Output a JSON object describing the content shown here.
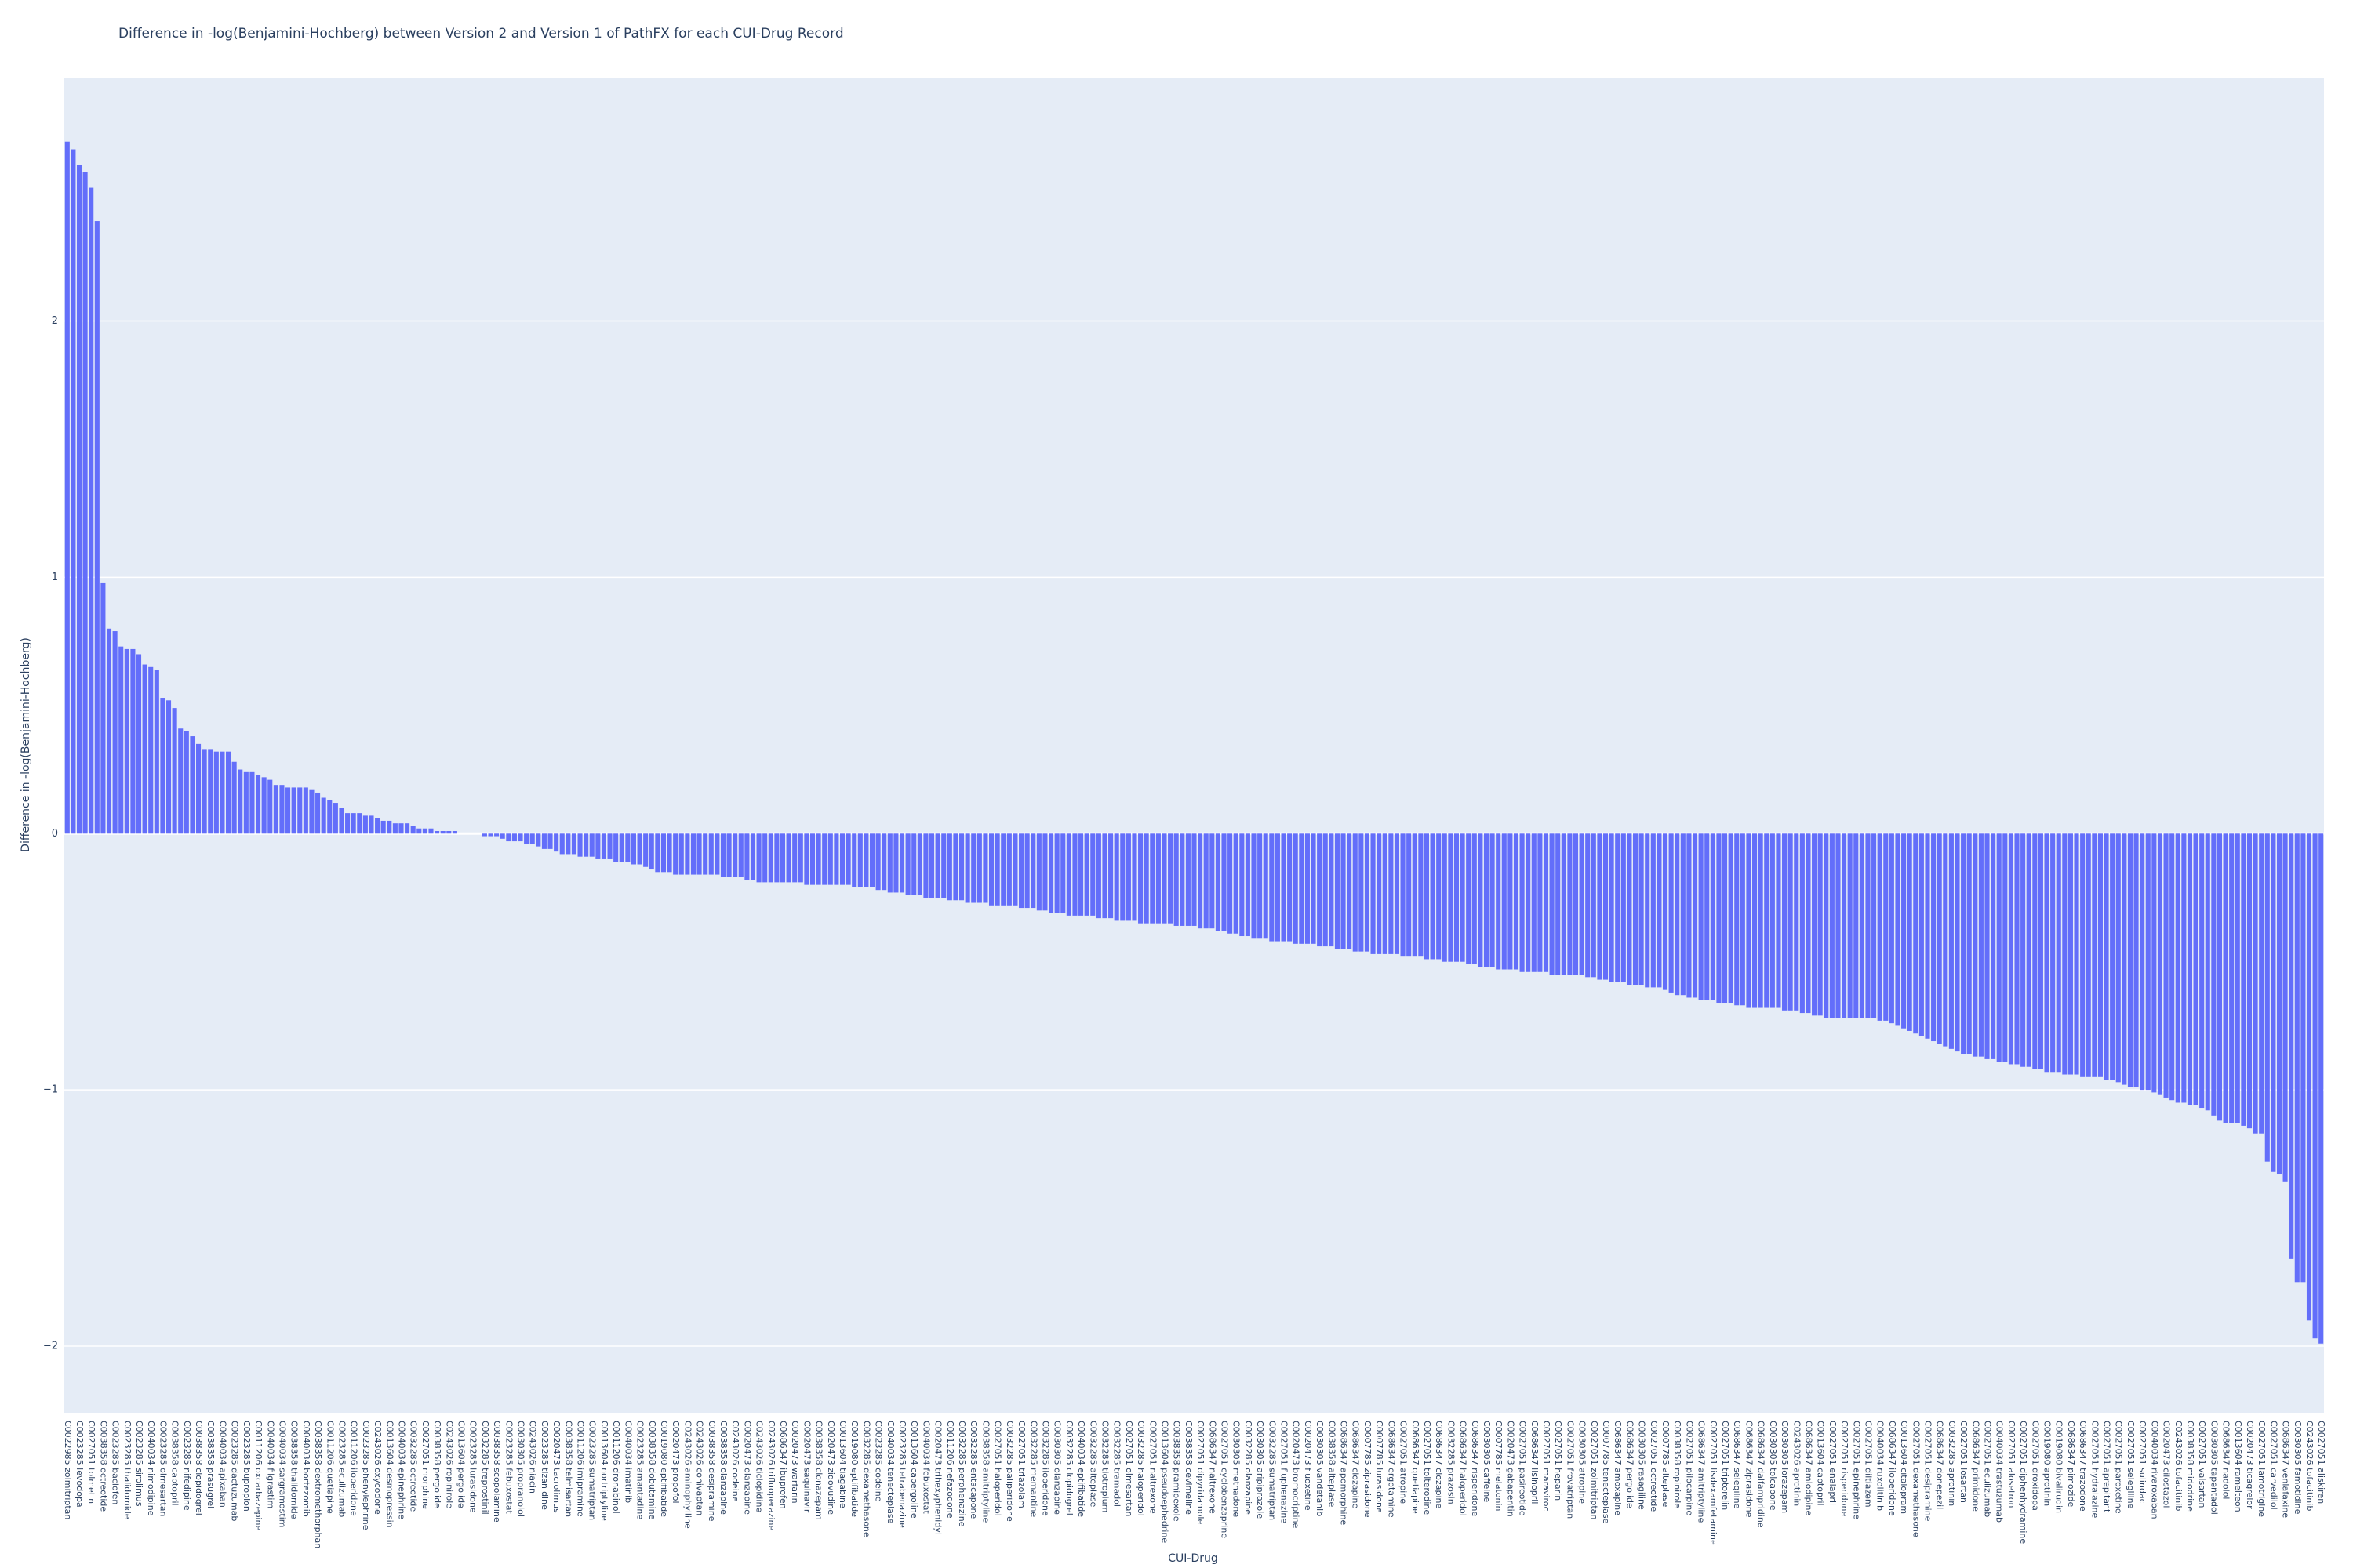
{
  "chart_data": {
    "type": "bar",
    "title": "Difference in -log(Benjamini-Hochberg) between Version 2 and Version 1 of PathFX for each CUI-Drug Record",
    "x_label": "CUI-Drug",
    "y_label": "Difference in -log(Benjamini-Hochberg)",
    "color": "#636efa",
    "grid": true,
    "ylim": [
      -2.26,
      2.95
    ],
    "yticks": [
      {
        "value": -2,
        "label": "−2"
      },
      {
        "value": -1,
        "label": "−1"
      },
      0,
      1,
      2
    ],
    "categories": [
      "C0022985 zolmitriptan",
      null,
      "C0023285 levodopa",
      null,
      "C0027051 tolmetin",
      null,
      "C0038358 octreotide",
      null,
      "C0023285 baclofen",
      null,
      "C0023285 thalidomide",
      null,
      "C0023285 sirolimus",
      null,
      "C0040034 nimodipine",
      null,
      "C0023285 olmesartan",
      null,
      "C0038358 captopril",
      null,
      "C0023285 nifedipine",
      null,
      "C0038358 clopidogrel",
      null,
      "C0038358 prasugrel",
      null,
      "C0040034 apixaban",
      null,
      "C0023285 dactuzumab",
      null,
      "C0023285 bupropion",
      null,
      "C0011206 oxcarbazepine",
      null,
      "C0040034 filgrastim",
      null,
      "C0040034 sargramostim",
      null,
      "C0038358 thalidomide",
      null,
      "C0040034 bortezomib",
      null,
      "C0038358 dextromethorphan",
      null,
      "C0011206 quetiapine",
      null,
      "C0023285 eculizumab",
      null,
      "C0011206 iloperidone",
      null,
      "C0023285 phenylephrine",
      null,
      "C0243026 oxycodone",
      null,
      "C0013604 desmopressin",
      null,
      "C0040034 epinephrine",
      null,
      "C0032285 octreotide",
      null,
      "C0027051 morphine",
      null,
      "C0038358 pergolide",
      null,
      "C0243026 ropinirole",
      null,
      "C0013604 pergolide",
      null,
      "C0023285 lurasidone",
      null,
      "C0032285 treprostinil",
      null,
      "C0038358 scopolamine",
      null,
      "C0023285 febuxostat",
      null,
      "C0030305 propranolol",
      null,
      "C0243026 niacin",
      null,
      "C0023285 tizanidine",
      null,
      "C0020473 tacrolimus",
      null,
      "C0038358 telmisartan",
      null,
      "C0011206 imipramine",
      null,
      "C0023285 sumatriptan",
      null,
      "C0013604 nortriptyline",
      null,
      "C0011206 dronabinol",
      null,
      "C0040034 imatinib",
      null,
      "C0023285 amantadine",
      null,
      "C0038358 dobutamine",
      null,
      "C0019080 eptifibatide",
      null,
      "C0020473 propofol",
      null,
      "C0243026 aminophylline",
      null,
      "C0243026 conivaptan",
      null,
      "C0038358 desipramine",
      null,
      "C0038358 olanzapine",
      null,
      "C0243026 codeine",
      null,
      "C0020473 olanzapine",
      null,
      "C0243026 ticlopidine",
      null,
      "C0243026 trifluoperazine",
      null,
      "C0686347 ibuprofen",
      null,
      "C0020473 warfarin",
      null,
      "C0020473 saquinavir",
      null,
      "C0038358 clonazepam",
      null,
      "C0020473 zidovudine",
      null,
      "C0013604 tiagabine",
      null,
      "C0019080 eptifibatide",
      null,
      "C0032285 dexamethasone",
      null,
      "C0023285 codeine",
      null,
      "C0040034 tenecteplase",
      null,
      "C0023285 tetrabenazine",
      null,
      "C0013604 cabergoline",
      null,
      "C0040034 febuxostat",
      null,
      "C0020473 trihexyphenidyl",
      null,
      "C0011206 nefazodone",
      null,
      "C0032285 perphenazine",
      null,
      "C0032285 entacapone",
      null,
      "C0038358 amitriptyline",
      null,
      "C0027051 haloperidol",
      null,
      "C0032285 paliperidone",
      null,
      "C0027051 triazolam",
      null,
      "C0032285 memantine",
      null,
      "C0032285 iloperidone",
      null,
      "C0030305 olanzapine",
      null,
      "C0032285 clopidogrel",
      null,
      "C0040034 eptifibatide",
      null,
      "C0032285 alteplase",
      null,
      "C0032285 tiotropium",
      null,
      "C0032285 tramadol",
      null,
      "C0027051 olmesartan",
      null,
      "C0032285 haloperidol",
      null,
      "C0027051 naltrexone",
      null,
      "C0013604 pseudoephedrine",
      null,
      "C0038358 pramipexole",
      null,
      "C0038358 cevimeline",
      null,
      "C0027051 dipyridamole",
      null,
      "C0686347 naltrexone",
      null,
      "C0027051 cyclobenzaprine",
      null,
      "C0030305 methadone",
      null,
      "C0032285 olanzapine",
      null,
      "C0030305 aripiprazole",
      null,
      "C0032285 sumatriptan",
      null,
      "C0027051 fluphenazine",
      null,
      "C0020473 bromocriptine",
      null,
      "C0020473 fluoxetine",
      null,
      "C0030305 vandetanib",
      null,
      "C0038358 alteplase",
      null,
      "C0686347 apomorphine",
      null,
      "C0686347 clozapine",
      null,
      "C0007785 ziprasidone",
      null,
      "C0007785 lurasidone",
      null,
      "C0686347 ergotamine",
      null,
      "C0027051 atropine",
      null,
      "C0686347 quetiapine",
      null,
      "C0027051 tolterodine",
      null,
      "C0686347 clozapine",
      null,
      "C0032285 prazosin",
      null,
      "C0686347 haloperidol",
      null,
      "C0686347 risperidone",
      null,
      "C0030305 caffeine",
      null,
      "C0007785 melatonin",
      null,
      "C0020473 gabapentin",
      null,
      "C0027051 pasireotide",
      null,
      "C0686347 lisinopril",
      null,
      "C0027051 maraviroc",
      null,
      "C0027051 heparin",
      null,
      "C0027051 frovatriptan",
      null,
      "C0030305 atropine",
      null,
      "C0027051 zolmitriptan",
      null,
      "C0007785 tenecteplase",
      null,
      "C0686347 amoxapine",
      null,
      "C0686347 pergolide",
      null,
      "C0030305 rasagiline",
      null,
      "C0027051 octreotide",
      null,
      "C0007785 alteplase",
      null,
      "C0038358 ropinirole",
      null,
      "C0027051 pilocarpine",
      null,
      "C0686347 amitriptyline",
      null,
      "C0027051 lisdexamfetamine",
      null,
      "C0027051 triptorelin",
      null,
      "C0686347 selegiline",
      null,
      "C0686347 ziprasidone",
      null,
      "C0686347 dalfampridine",
      null,
      "C0030305 tolcapone",
      null,
      "C0030305 lorazepam",
      null,
      "C0243026 aprotinin",
      null,
      "C0686347 amlodipine",
      null,
      "C0013604 captopril",
      null,
      "C0027051 enalapril",
      null,
      "C0027051 risperidone",
      null,
      "C0027051 epinephrine",
      null,
      "C0027051 diltiazem",
      null,
      "C0040034 ruxolitinib",
      null,
      "C0686347 iloperidone",
      null,
      "C0013604 citalopram",
      null,
      "C0027051 dexamethasone",
      null,
      "C0027051 desipramine",
      null,
      "C0686347 donepezil",
      null,
      "C0032285 aprotinin",
      null,
      "C0027051 losartan",
      null,
      "C0686347 primidone",
      null,
      "C0027051 eculizumab",
      null,
      "C0040034 trastuzumab",
      null,
      "C0027051 alosetron",
      null,
      "C0027051 diphenhydramine",
      null,
      "C0027051 droxidopa",
      null,
      "C0019080 aprotinin",
      null,
      "C0019080 bivalirudin",
      null,
      "C0686347 pimozide",
      null,
      "C0686347 trazodone",
      null,
      "C0027051 hydralazine",
      null,
      "C0027051 aprepitant",
      null,
      "C0027051 paroxetine",
      null,
      "C0027051 selegiline",
      null,
      "C0027051 sulindac",
      null,
      "C0040034 rivaroxaban",
      null,
      "C0020473 cilostazol",
      null,
      "C0243026 tofacitinib",
      null,
      "C0038358 midodrine",
      null,
      "C0027051 valsartan",
      null,
      "C0030305 tapentadol",
      null,
      "C0686347 nadolol",
      null,
      "C0013604 ramelteon",
      null,
      "C0020473 ticagrelor",
      null,
      "C0027051 lamotrigine",
      null,
      "C0027051 carvedilol",
      null,
      "C0686347 venlafaxine",
      null,
      "C0030305 famotidine",
      null,
      "C0243026 tofacitinib",
      null,
      "C0027051 aliskiren"
    ],
    "values": [
      2.7,
      2.67,
      2.61,
      2.58,
      2.52,
      2.39,
      0.98,
      0.8,
      0.79,
      0.73,
      0.72,
      0.72,
      0.7,
      0.66,
      0.65,
      0.64,
      0.53,
      0.52,
      0.49,
      0.41,
      0.4,
      0.38,
      0.35,
      0.33,
      0.33,
      0.32,
      0.32,
      0.32,
      0.28,
      0.25,
      0.24,
      0.24,
      0.23,
      0.22,
      0.21,
      0.19,
      0.19,
      0.18,
      0.18,
      0.18,
      0.18,
      0.17,
      0.16,
      0.14,
      0.13,
      0.12,
      0.1,
      0.08,
      0.08,
      0.08,
      0.07,
      0.07,
      0.06,
      0.05,
      0.05,
      0.04,
      0.04,
      0.04,
      0.03,
      0.02,
      0.02,
      0.02,
      0.01,
      0.01,
      0.01,
      0.01,
      0.0,
      0.0,
      0.0,
      0.0,
      -0.01,
      -0.01,
      -0.01,
      -0.02,
      -0.03,
      -0.03,
      -0.03,
      -0.04,
      -0.04,
      -0.05,
      -0.06,
      -0.06,
      -0.07,
      -0.08,
      -0.08,
      -0.08,
      -0.09,
      -0.09,
      -0.09,
      -0.1,
      -0.1,
      -0.1,
      -0.11,
      -0.11,
      -0.11,
      -0.12,
      -0.12,
      -0.13,
      -0.14,
      -0.15,
      -0.15,
      -0.15,
      -0.16,
      -0.16,
      -0.16,
      -0.16,
      -0.16,
      -0.16,
      -0.16,
      -0.16,
      -0.17,
      -0.17,
      -0.17,
      -0.17,
      -0.18,
      -0.18,
      -0.19,
      -0.19,
      -0.19,
      -0.19,
      -0.19,
      -0.19,
      -0.19,
      -0.19,
      -0.2,
      -0.2,
      -0.2,
      -0.2,
      -0.2,
      -0.2,
      -0.2,
      -0.2,
      -0.21,
      -0.21,
      -0.21,
      -0.21,
      -0.22,
      -0.22,
      -0.23,
      -0.23,
      -0.23,
      -0.24,
      -0.24,
      -0.24,
      -0.25,
      -0.25,
      -0.25,
      -0.25,
      -0.26,
      -0.26,
      -0.26,
      -0.27,
      -0.27,
      -0.27,
      -0.27,
      -0.28,
      -0.28,
      -0.28,
      -0.28,
      -0.28,
      -0.29,
      -0.29,
      -0.29,
      -0.3,
      -0.3,
      -0.31,
      -0.31,
      -0.31,
      -0.32,
      -0.32,
      -0.32,
      -0.32,
      -0.32,
      -0.33,
      -0.33,
      -0.33,
      -0.34,
      -0.34,
      -0.34,
      -0.34,
      -0.35,
      -0.35,
      -0.35,
      -0.35,
      -0.35,
      -0.35,
      -0.36,
      -0.36,
      -0.36,
      -0.36,
      -0.37,
      -0.37,
      -0.37,
      -0.38,
      -0.38,
      -0.39,
      -0.39,
      -0.4,
      -0.4,
      -0.41,
      -0.41,
      -0.41,
      -0.42,
      -0.42,
      -0.42,
      -0.42,
      -0.43,
      -0.43,
      -0.43,
      -0.43,
      -0.44,
      -0.44,
      -0.44,
      -0.45,
      -0.45,
      -0.45,
      -0.46,
      -0.46,
      -0.46,
      -0.47,
      -0.47,
      -0.47,
      -0.47,
      -0.47,
      -0.48,
      -0.48,
      -0.48,
      -0.48,
      -0.49,
      -0.49,
      -0.49,
      -0.5,
      -0.5,
      -0.5,
      -0.5,
      -0.51,
      -0.51,
      -0.52,
      -0.52,
      -0.52,
      -0.53,
      -0.53,
      -0.53,
      -0.53,
      -0.54,
      -0.54,
      -0.54,
      -0.54,
      -0.54,
      -0.55,
      -0.55,
      -0.55,
      -0.55,
      -0.55,
      -0.55,
      -0.56,
      -0.56,
      -0.57,
      -0.57,
      -0.58,
      -0.58,
      -0.58,
      -0.59,
      -0.59,
      -0.59,
      -0.6,
      -0.6,
      -0.6,
      -0.61,
      -0.62,
      -0.63,
      -0.63,
      -0.64,
      -0.64,
      -0.65,
      -0.65,
      -0.65,
      -0.66,
      -0.66,
      -0.66,
      -0.67,
      -0.67,
      -0.68,
      -0.68,
      -0.68,
      -0.68,
      -0.68,
      -0.68,
      -0.69,
      -0.69,
      -0.69,
      -0.7,
      -0.7,
      -0.71,
      -0.71,
      -0.72,
      -0.72,
      -0.72,
      -0.72,
      -0.72,
      -0.72,
      -0.72,
      -0.72,
      -0.72,
      -0.73,
      -0.73,
      -0.74,
      -0.75,
      -0.76,
      -0.77,
      -0.78,
      -0.79,
      -0.8,
      -0.81,
      -0.82,
      -0.83,
      -0.84,
      -0.85,
      -0.86,
      -0.86,
      -0.87,
      -0.87,
      -0.88,
      -0.88,
      -0.89,
      -0.89,
      -0.9,
      -0.9,
      -0.91,
      -0.91,
      -0.92,
      -0.92,
      -0.93,
      -0.93,
      -0.93,
      -0.94,
      -0.94,
      -0.94,
      -0.95,
      -0.95,
      -0.95,
      -0.95,
      -0.96,
      -0.96,
      -0.97,
      -0.98,
      -0.99,
      -0.99,
      -1.0,
      -1.0,
      -1.01,
      -1.02,
      -1.03,
      -1.04,
      -1.05,
      -1.05,
      -1.06,
      -1.06,
      -1.07,
      -1.08,
      -1.1,
      -1.12,
      -1.13,
      -1.13,
      -1.13,
      -1.14,
      -1.15,
      -1.17,
      -1.17,
      -1.28,
      -1.32,
      -1.33,
      -1.36,
      -1.66,
      -1.75,
      -1.75,
      -1.9,
      -1.97,
      -1.99
    ]
  }
}
